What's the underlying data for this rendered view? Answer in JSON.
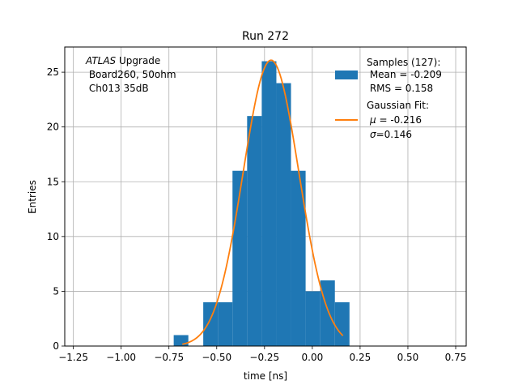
{
  "chart_data": {
    "type": "bar",
    "title": "Run 272",
    "xlabel": "time [ns]",
    "ylabel": "Entries",
    "xlim": [
      -1.25,
      0.75
    ],
    "ylim": [
      0,
      27.3
    ],
    "grid": true,
    "xticks": [
      -1.25,
      -1.0,
      -0.75,
      -0.5,
      -0.25,
      0.0,
      0.25,
      0.5,
      0.75
    ],
    "xtick_labels": [
      "−1.25",
      "−1.00",
      "−0.75",
      "−0.50",
      "−0.25",
      "0.00",
      "0.25",
      "0.50",
      "0.75"
    ],
    "yticks": [
      0,
      5,
      10,
      15,
      20,
      25
    ],
    "ytick_labels": [
      "0",
      "5",
      "10",
      "15",
      "20",
      "25"
    ],
    "bin_width": 0.0765,
    "histogram": {
      "bin_left_edges": [
        -0.725,
        -0.5705,
        -0.494,
        -0.4175,
        -0.341,
        -0.2645,
        -0.188,
        -0.1115,
        -0.035,
        0.0415,
        0.118
      ],
      "counts": [
        1,
        4,
        4,
        16,
        21,
        26,
        24,
        16,
        5,
        6,
        4
      ],
      "color": "#1f77b4"
    },
    "gaussian_fit": {
      "mu": -0.216,
      "sigma": 0.146,
      "amplitude": 26.1,
      "x_range": [
        -0.68,
        0.16
      ],
      "color": "#ff7f0e"
    },
    "annotation": {
      "line1_italic": "ATLAS",
      "line1_rest": " Upgrade",
      "line2": " Board260, 50ohm",
      "line3": " Ch013 35dB"
    },
    "legend": {
      "placement": "top-right",
      "samples": {
        "line1": "Samples (127):",
        "line2": " Mean = -0.209",
        "line3": " RMS = 0.158"
      },
      "fit": {
        "line1": "Gaussian Fit:",
        "line2_symbol": "μ",
        "line2_rest": " = -0.216",
        "line3_symbol": "σ",
        "line3_rest": "=0.146"
      }
    }
  }
}
